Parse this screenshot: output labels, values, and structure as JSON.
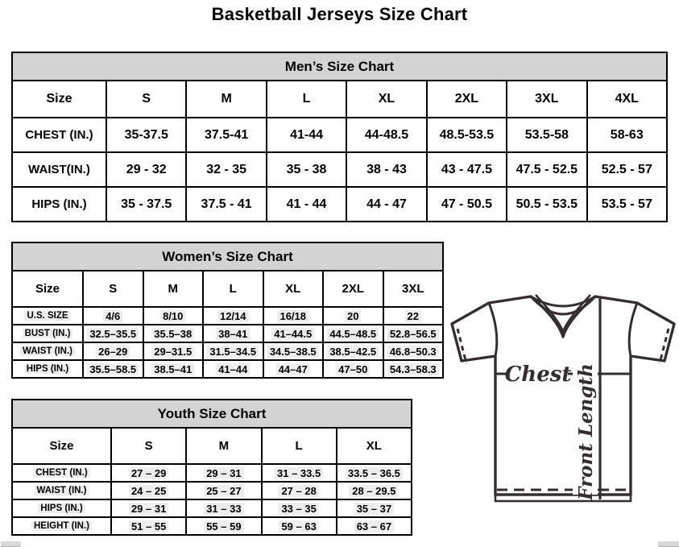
{
  "page_title": "Basketball Jerseys Size Chart",
  "colors": {
    "band_gray": "#d3d3d3",
    "border_black": "#000000",
    "jersey_outline": "#352e2e",
    "highlight_gray": "#eeeeee"
  },
  "mens": {
    "title": "Men’s Size Chart",
    "columns": [
      "Size",
      "S",
      "M",
      "L",
      "XL",
      "2XL",
      "3XL",
      "4XL"
    ],
    "rows": [
      {
        "label": "CHEST (IN.)",
        "values": [
          "35-37.5",
          "37.5-41",
          "41-44",
          "44-48.5",
          "48.5-53.5",
          "53.5-58",
          "58-63"
        ]
      },
      {
        "label": "WAIST(IN.)",
        "values": [
          "29 - 32",
          "32 - 35",
          "35 - 38",
          "38 - 43",
          "43 - 47.5",
          "47.5 - 52.5",
          "52.5 - 57"
        ]
      },
      {
        "label": "HIPS (IN.)",
        "values": [
          "35 - 37.5",
          "37.5 - 41",
          "41 - 44",
          "44 - 47",
          "47 - 50.5",
          "50.5 - 53.5",
          "53.5 - 57"
        ]
      }
    ]
  },
  "womens": {
    "title": "Women’s Size Chart",
    "columns": [
      "Size",
      "S",
      "M",
      "L",
      "XL",
      "2XL",
      "3XL"
    ],
    "rows": [
      {
        "label": "U.S. SIZE",
        "values": [
          "4/6",
          "8/10",
          "12/14",
          "16/18",
          "20",
          "22"
        ]
      },
      {
        "label": "BUST (IN.)",
        "values": [
          "32.5–35.5",
          "35.5–38",
          "38–41",
          "41–44.5",
          "44.5–48.5",
          "52.8–56.5"
        ]
      },
      {
        "label": "WAIST (IN.)",
        "values": [
          "26–29",
          "29–31.5",
          "31.5–34.5",
          "34.5–38.5",
          "38.5–42.5",
          "46.8–50.3"
        ]
      },
      {
        "label": "HIPS (IN.)",
        "values": [
          "35.5–58.5",
          "38.5–41",
          "41–44",
          "44–47",
          "47–50",
          "54.3–58.3"
        ]
      }
    ]
  },
  "youth": {
    "title": "Youth Size Chart",
    "columns": [
      "Size",
      "S",
      "M",
      "L",
      "XL"
    ],
    "rows": [
      {
        "label": "CHEST (IN.)",
        "values": [
          "27 – 29",
          "29 – 31",
          "31 – 33.5",
          "33.5 – 36.5"
        ]
      },
      {
        "label": "WAIST (IN.)",
        "values": [
          "24 – 25",
          "25 – 27",
          "27 – 28",
          "28 – 29.5"
        ]
      },
      {
        "label": "HIPS (IN.)",
        "values": [
          "29 – 31",
          "31 – 33",
          "33 – 35",
          "35 – 37"
        ]
      },
      {
        "label": "HEIGHT (IN.)",
        "values": [
          "51 – 55",
          "55 – 59",
          "59 – 63",
          "63 – 67"
        ]
      }
    ]
  },
  "diagram": {
    "chest_label": "Chest",
    "front_length_label": "Front Length"
  }
}
